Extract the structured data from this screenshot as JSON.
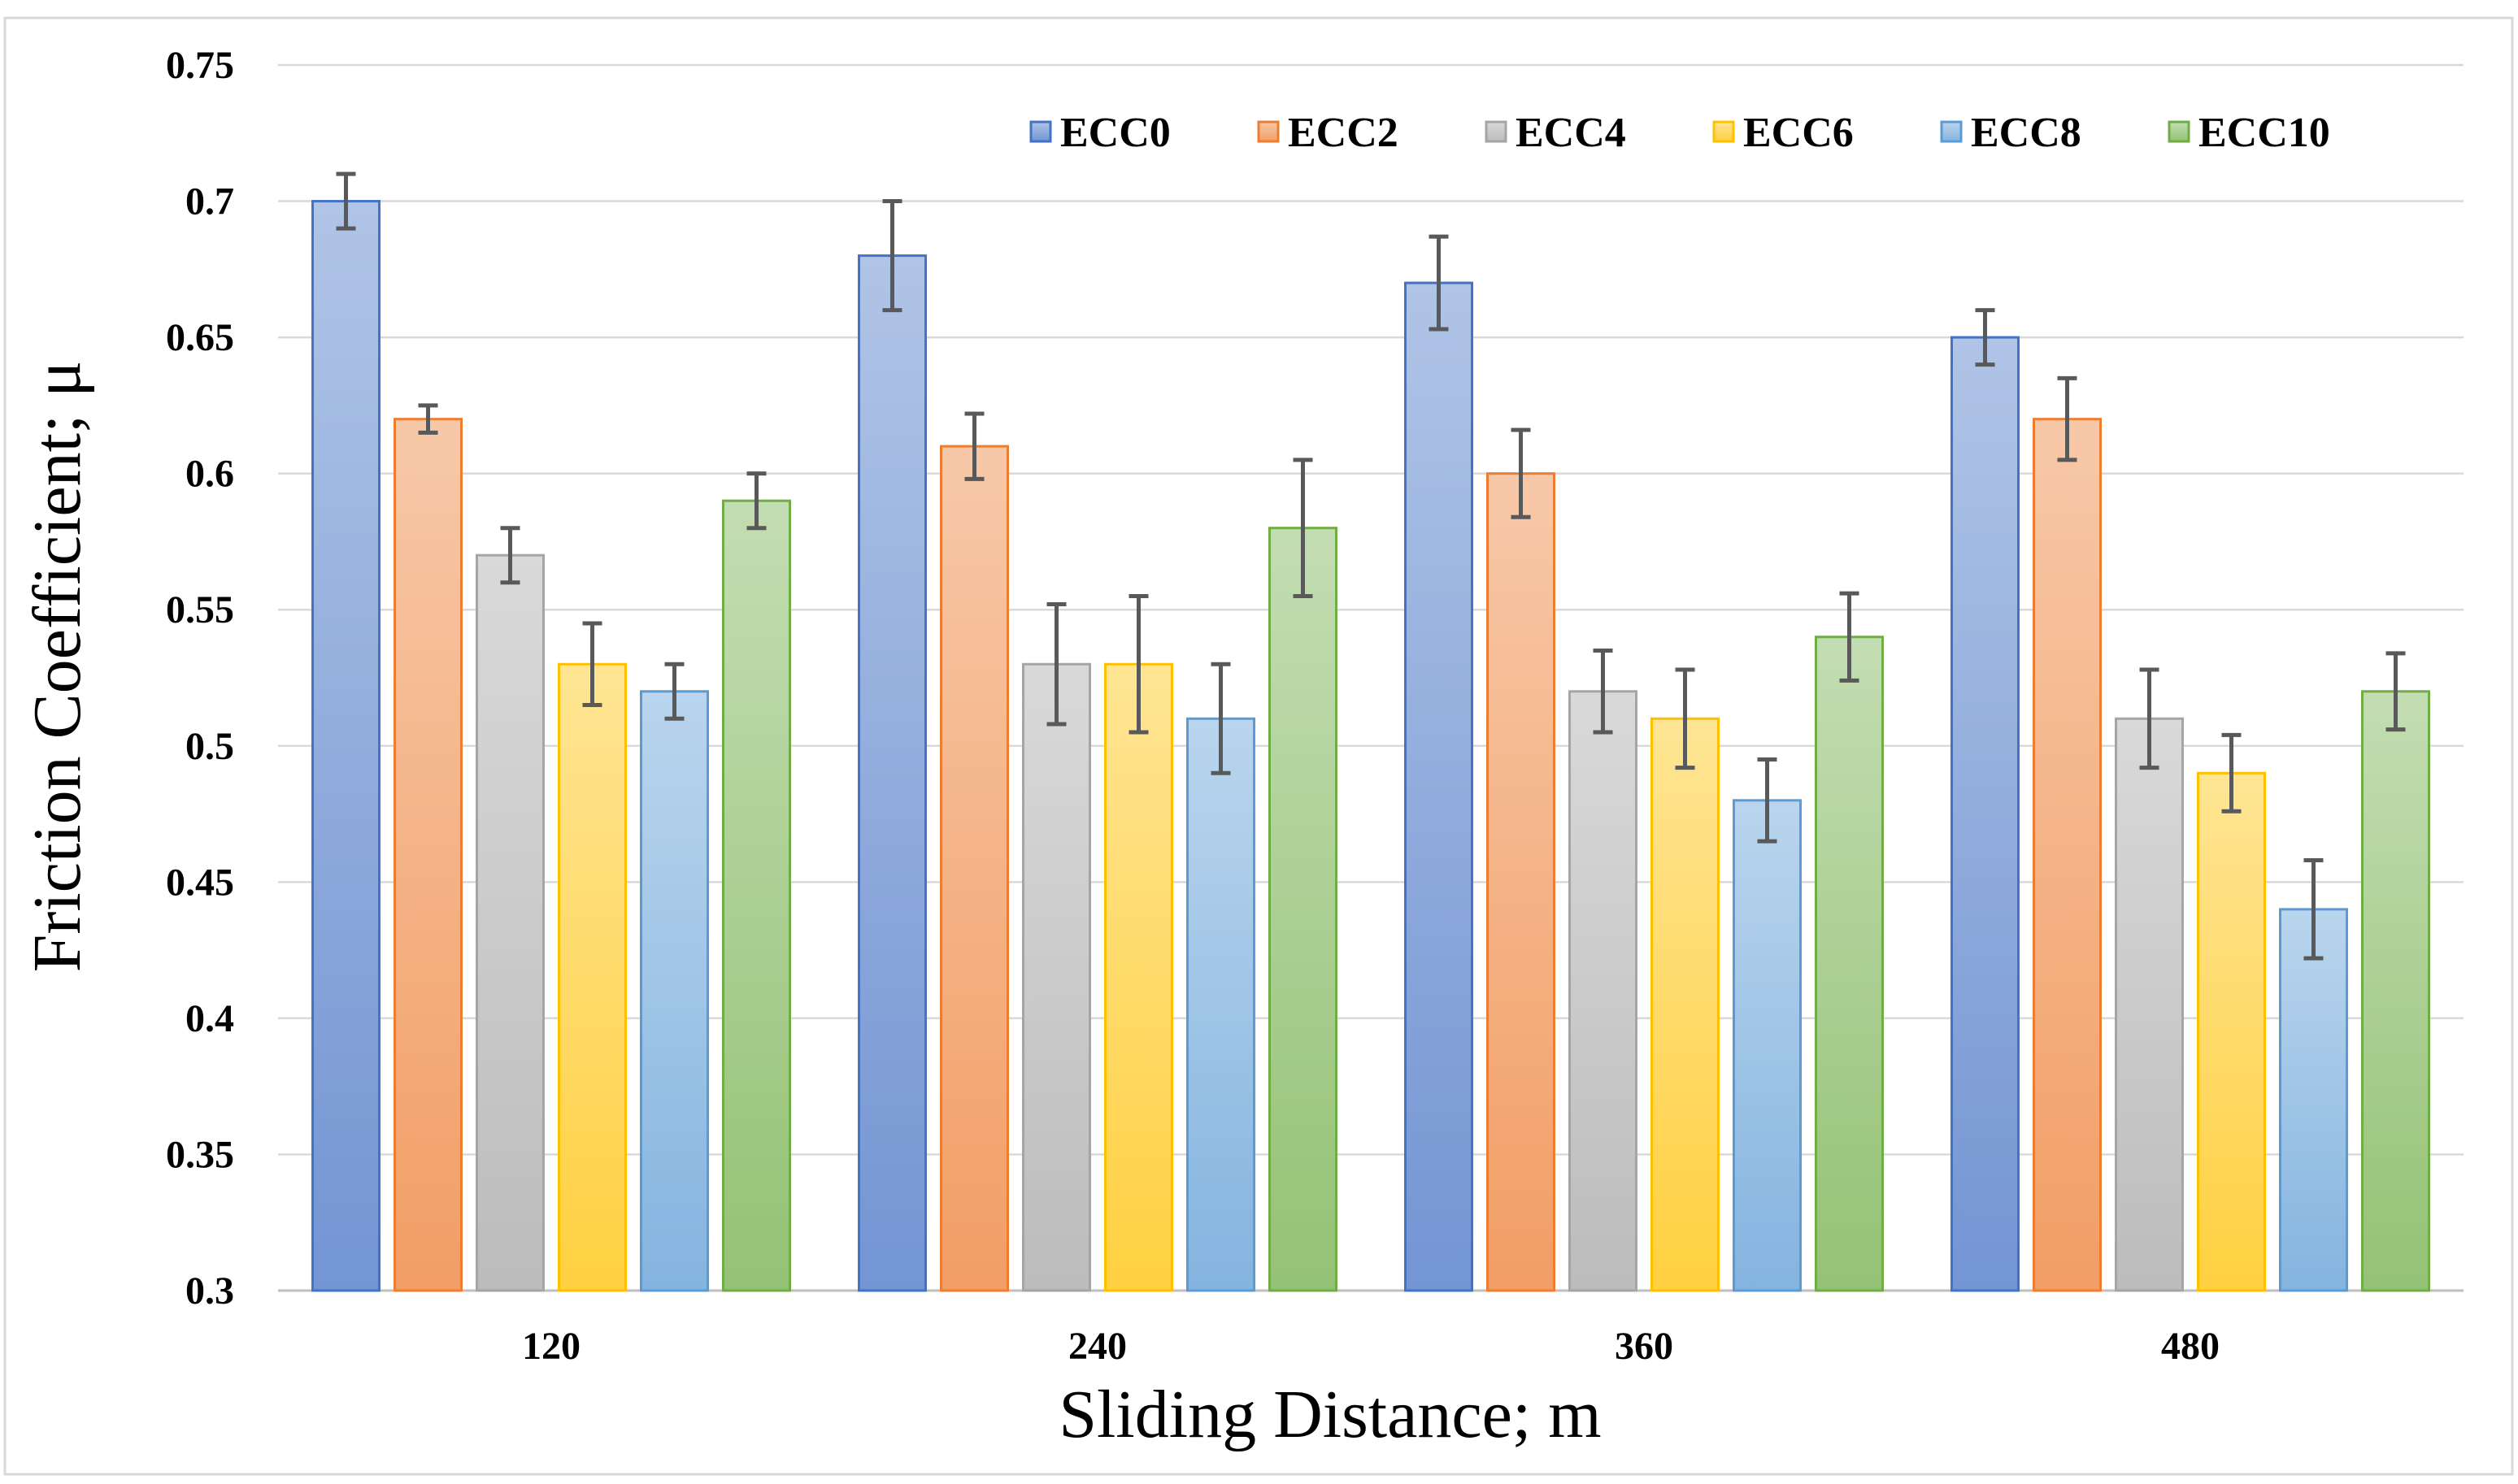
{
  "chart_data": {
    "type": "bar",
    "title": "",
    "xlabel": "Sliding Distance; m",
    "ylabel": "Friction Coefficient; μ",
    "ylim": [
      0.3,
      0.75
    ],
    "yticks": [
      "0.3",
      "0.35",
      "0.4",
      "0.45",
      "0.5",
      "0.55",
      "0.6",
      "0.65",
      "0.7",
      "0.75"
    ],
    "grid": true,
    "legend_position": "top-right",
    "categories": [
      "120",
      "240",
      "360",
      "480"
    ],
    "series": [
      {
        "name": "ECC0",
        "color": "#4472C4",
        "values": [
          0.7,
          0.68,
          0.67,
          0.65
        ],
        "errors": [
          0.01,
          0.02,
          0.017,
          0.01
        ]
      },
      {
        "name": "ECC2",
        "color": "#ED7D31",
        "values": [
          0.62,
          0.61,
          0.6,
          0.62
        ],
        "errors": [
          0.005,
          0.012,
          0.016,
          0.015
        ]
      },
      {
        "name": "ECC4",
        "color": "#A5A5A5",
        "values": [
          0.57,
          0.53,
          0.52,
          0.51
        ],
        "errors": [
          0.01,
          0.022,
          0.015,
          0.018
        ]
      },
      {
        "name": "ECC6",
        "color": "#FFC000",
        "values": [
          0.53,
          0.53,
          0.51,
          0.49
        ],
        "errors": [
          0.015,
          0.025,
          0.018,
          0.014
        ]
      },
      {
        "name": "ECC8",
        "color": "#5B9BD5",
        "values": [
          0.52,
          0.51,
          0.48,
          0.44
        ],
        "errors": [
          0.01,
          0.02,
          0.015,
          0.018
        ]
      },
      {
        "name": "ECC10",
        "color": "#70AD47",
        "values": [
          0.59,
          0.58,
          0.54,
          0.52
        ],
        "errors": [
          0.01,
          0.025,
          0.016,
          0.014
        ]
      }
    ]
  }
}
